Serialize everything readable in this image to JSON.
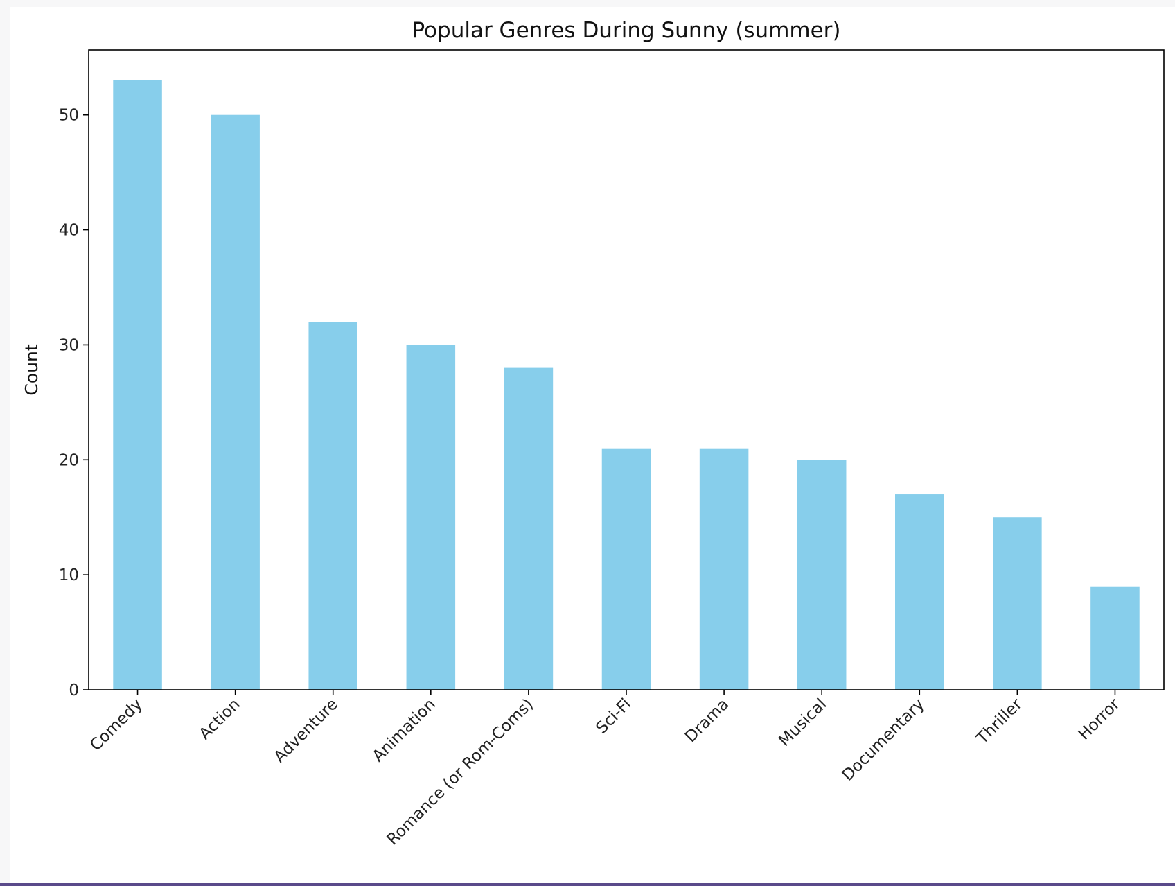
{
  "chart_data": {
    "type": "bar",
    "title": "Popular Genres During Sunny (summer)",
    "xlabel": "",
    "ylabel": "Count",
    "categories": [
      "Comedy",
      "Action",
      "Adventure",
      "Animation",
      "Romance (or Rom-Coms)",
      "Sci-Fi",
      "Drama",
      "Musical",
      "Documentary",
      "Thriller",
      "Horror"
    ],
    "values": [
      53,
      50,
      32,
      30,
      28,
      21,
      21,
      20,
      17,
      15,
      9
    ],
    "ylim": [
      0,
      55.65
    ],
    "yticks": [
      0,
      10,
      20,
      30,
      40,
      50
    ],
    "bar_color": "#87ceeb",
    "grid": false,
    "legend": "none",
    "xtick_rotation_deg": 45
  }
}
